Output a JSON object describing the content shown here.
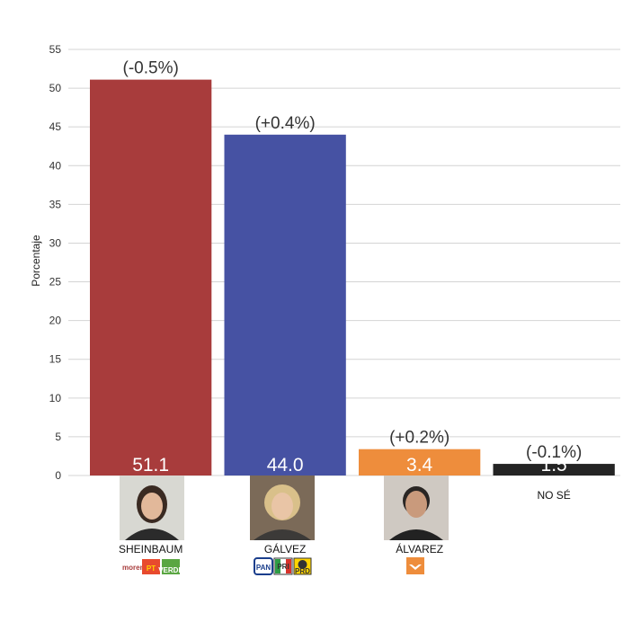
{
  "chart_data": {
    "type": "bar",
    "title": "",
    "xlabel": "",
    "ylabel": "Porcentaje",
    "ylim": [
      0,
      55
    ],
    "yticks": [
      0,
      5,
      10,
      15,
      20,
      25,
      30,
      35,
      40,
      45,
      50,
      55
    ],
    "grid": true,
    "categories": [
      "SHEINBAUM",
      "GÁLVEZ",
      "ÁLVAREZ",
      "NO SÉ"
    ],
    "values": [
      51.1,
      44.0,
      3.4,
      1.5
    ],
    "value_labels": [
      "51.1",
      "44.0",
      "3.4",
      "1.5"
    ],
    "changes": [
      "(-0.5%)",
      "(+0.4%)",
      "(+0.2%)",
      "(-0.1%)"
    ],
    "colors": [
      "#a83c3c",
      "#4652a3",
      "#ee8d3c",
      "#242424"
    ],
    "photos": [
      "sheinbaum-photo",
      "galvez-photo",
      "alvarez-photo",
      ""
    ],
    "party_logos": [
      [
        "morena-logo",
        "pt-logo",
        "verde-logo"
      ],
      [
        "pan-logo",
        "pri-logo",
        "prd-logo"
      ],
      [
        "movimiento-ciudadano-logo"
      ],
      []
    ]
  },
  "party_texts": {
    "morena": "morena",
    "pt": "PT",
    "verde": "VERDE",
    "pan": "PAN",
    "pri": "PRI",
    "prd": "PRD"
  }
}
